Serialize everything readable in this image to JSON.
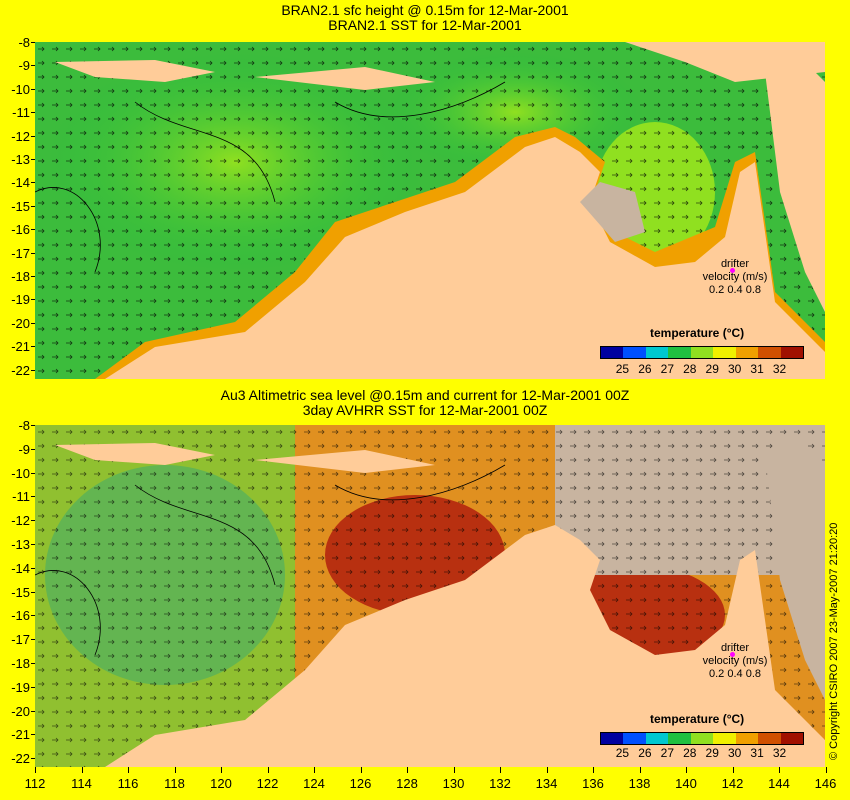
{
  "top_map": {
    "title_line1": "BRAN2.1 sfc height @ 0.15m for 12-Mar-2001",
    "title_line2": "BRAN2.1 SST for 12-Mar-2001"
  },
  "bottom_map": {
    "title_line1": "Au3 Altimetric sea level  @0.15m and current for 12-Mar-2001 00Z",
    "title_line2": "3day AVHRR SST for 12-Mar-2001 00Z"
  },
  "axes": {
    "lat_labels": [
      "-8",
      "-9",
      "-10",
      "-11",
      "-12",
      "-13",
      "-14",
      "-15",
      "-16",
      "-17",
      "-18",
      "-19",
      "-20",
      "-21",
      "-22"
    ],
    "lon_labels": [
      "112",
      "114",
      "116",
      "118",
      "120",
      "122",
      "124",
      "126",
      "128",
      "130",
      "132",
      "134",
      "136",
      "138",
      "140",
      "142",
      "144",
      "146"
    ]
  },
  "legend": {
    "title": "temperature (°C)",
    "ticks": [
      "25",
      "26",
      "27",
      "28",
      "29",
      "30",
      "31",
      "32"
    ],
    "colors": [
      "#0000a0",
      "#0050ff",
      "#00c8d0",
      "#20c040",
      "#90e020",
      "#f0f000",
      "#f0a000",
      "#d05000",
      "#a01000"
    ]
  },
  "drifter": {
    "label_line1": "drifter",
    "label_line2": "velocity (m/s)",
    "scale": "0.2 0.4 0.8",
    "color": "#ff00ff"
  },
  "copyright": "© Copyright CSIRO 2007   23-May-2007 21:20:20",
  "colors": {
    "background": "#ffff00",
    "land": "#ffcc99",
    "nodata": "#c8b4a0"
  }
}
